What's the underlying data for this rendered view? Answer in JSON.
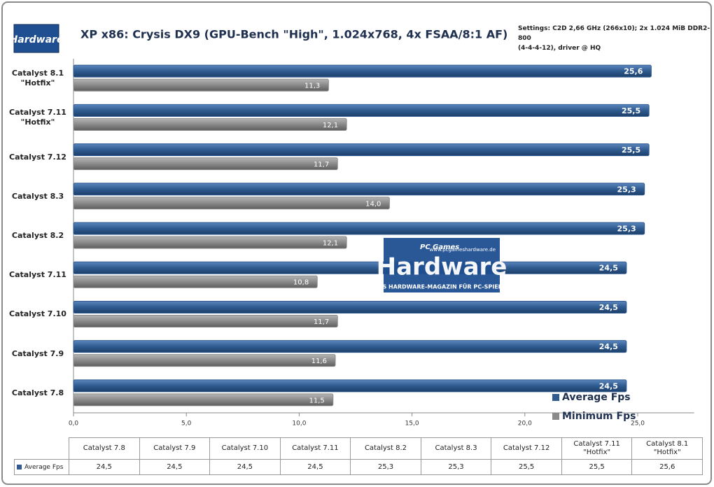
{
  "chart_data": {
    "type": "bar",
    "orientation": "horizontal",
    "title": "XP x86: Crysis DX9 (GPU-Bench \"High\", 1.024x768,  4x FSAA/8:1 AF)",
    "subtitle": "Settings: C2D 2,66 GHz (266x10); 2x 1.024 MiB DDR2-800\n(4-4-4-12), driver @ HQ",
    "categories": [
      "Catalyst 8.1\n\"Hotfix\"",
      "Catalyst 7.11\n\"Hotfix\"",
      "Catalyst 7.12",
      "Catalyst 8.3",
      "Catalyst 8.2",
      "Catalyst 7.11",
      "Catalyst 7.10",
      "Catalyst 7.9",
      "Catalyst 7.8"
    ],
    "series": [
      {
        "name": "Average Fps",
        "color": "#2f5b90",
        "values": [
          25.6,
          25.5,
          25.5,
          25.3,
          25.3,
          24.5,
          24.5,
          24.5,
          24.5
        ],
        "value_labels": [
          "25,6",
          "25,5",
          "25,5",
          "25,3",
          "25,3",
          "24,5",
          "24,5",
          "24,5",
          "24,5"
        ]
      },
      {
        "name": "Minimum  Fps",
        "color": "#8a8a8a",
        "values": [
          11.3,
          12.1,
          11.7,
          14.0,
          12.1,
          10.8,
          11.7,
          11.6,
          11.5
        ],
        "value_labels": [
          "11,3",
          "12,1",
          "11,7",
          "14,0",
          "12,1",
          "10,8",
          "11,7",
          "11,6",
          "11,5"
        ]
      }
    ],
    "xlim": [
      0,
      27.5
    ],
    "xticks": [
      {
        "value": 0,
        "label": "0,0"
      },
      {
        "value": 5,
        "label": "5,0"
      },
      {
        "value": 10,
        "label": "10,0"
      },
      {
        "value": 15,
        "label": "15,0"
      },
      {
        "value": 20,
        "label": "20,0"
      },
      {
        "value": 25,
        "label": "25,0"
      }
    ],
    "grid": false,
    "legend": "bottom-right",
    "watermark": {
      "prefix": "PC Games",
      "brand": "Hardware",
      "url": "www.pcgameshardware.de",
      "tagline": "DAS HARDWARE-MAGAZIN FÜR PC-SPIELER"
    }
  }
}
